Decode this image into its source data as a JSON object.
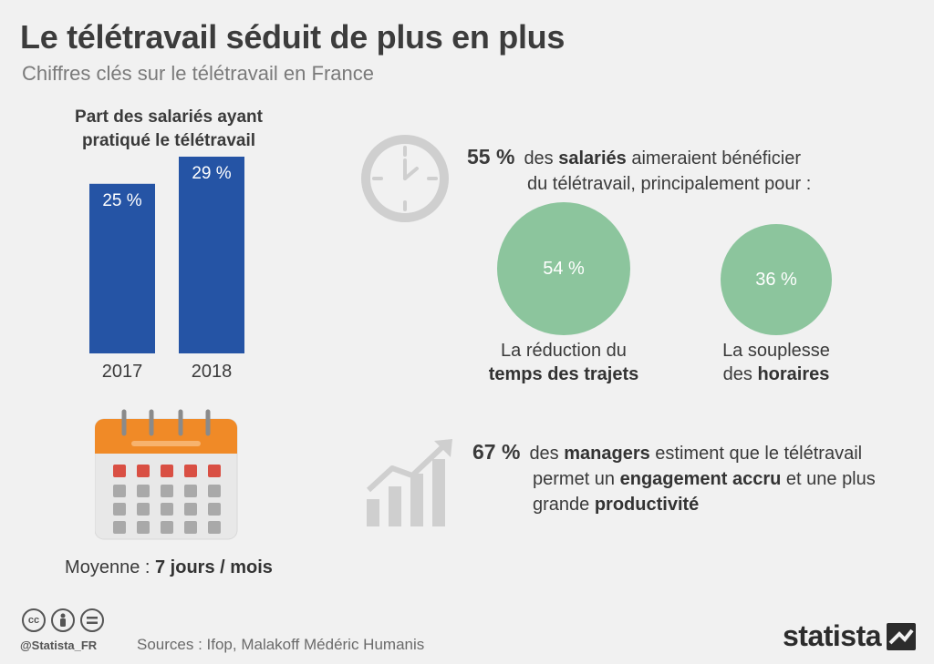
{
  "header": {
    "title": "Le télétravail séduit de plus en plus",
    "subtitle": "Chiffres clés sur le télétravail en France"
  },
  "chart_data": {
    "type": "bar",
    "title_lines": [
      "Part des salariés ayant",
      "pratiqué le télétravail"
    ],
    "categories": [
      "2017",
      "2018"
    ],
    "values": [
      25,
      29
    ],
    "value_labels": [
      "25 %",
      "29 %"
    ],
    "ylim": [
      0,
      29
    ],
    "bar_color": "#2554a5",
    "grid": false
  },
  "calendar": {
    "caption_prefix": "Moyenne : ",
    "caption_value": "7 jours / mois",
    "header_color": "#f08a27",
    "red_cell_color": "#d94f43",
    "gray_cell_color": "#a9a9a9"
  },
  "stat_salaries": {
    "icon": "clock-icon",
    "value": "55 %",
    "text1": "des ",
    "bold1": "salariés",
    "text2": " aimeraient bénéficier",
    "line2": "du télétravail, principalement pour :"
  },
  "reasons": [
    {
      "value": "54 %",
      "line1": "La réduction du",
      "bold": "temps des trajets"
    },
    {
      "value": "36 %",
      "line1": "La souplesse",
      "prefix2": "des ",
      "bold": "horaires"
    }
  ],
  "stat_managers": {
    "icon": "rising-chart-icon",
    "value": "67 %",
    "text1": "des ",
    "bold1": "managers",
    "text2": " estiment que le télétravail",
    "l2_text": "permet un ",
    "l2_bold": "engagement accru",
    "l2_text2": " et une plus",
    "l3_text": "grande ",
    "l3_bold": "productivité"
  },
  "colors": {
    "bubble": "#8cc59d",
    "bar": "#2554a5",
    "icon_gray": "#cfcfcf"
  },
  "footer": {
    "cc_icons": [
      "cc-icon",
      "by-icon",
      "nd-icon"
    ],
    "handle": "@Statista_FR",
    "source": "Sources : Ifop, Malakoff Médéric Humanis",
    "brand": "statista",
    "brand_icon": "statista-logo-icon"
  }
}
